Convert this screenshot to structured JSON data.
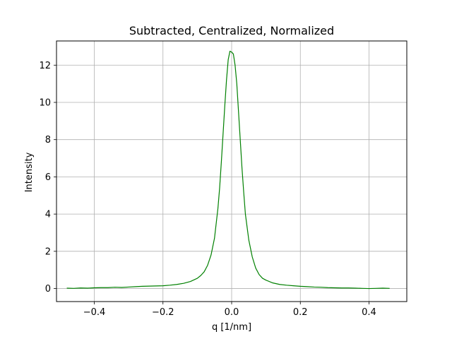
{
  "chart_data": {
    "type": "line",
    "title": "Subtracted, Centralized, Normalized",
    "xlabel": "q [1/nm]",
    "ylabel": "Intensity",
    "xlim": [
      -0.51,
      0.51
    ],
    "ylim": [
      -0.7,
      13.3
    ],
    "grid": true,
    "x_ticks": [
      -0.4,
      -0.2,
      0.0,
      0.2,
      0.4
    ],
    "x_tick_labels": [
      "−0.4",
      "−0.2",
      "0.0",
      "0.2",
      "0.4"
    ],
    "y_ticks": [
      0,
      2,
      4,
      6,
      8,
      10,
      12
    ],
    "y_tick_labels": [
      "0",
      "2",
      "4",
      "6",
      "8",
      "10",
      "12"
    ],
    "series": [
      {
        "color": "#008000",
        "x": [
          -0.48,
          -0.46,
          -0.44,
          -0.42,
          -0.4,
          -0.38,
          -0.36,
          -0.34,
          -0.32,
          -0.3,
          -0.28,
          -0.26,
          -0.24,
          -0.22,
          -0.2,
          -0.18,
          -0.16,
          -0.14,
          -0.12,
          -0.1,
          -0.09,
          -0.08,
          -0.07,
          -0.06,
          -0.05,
          -0.04,
          -0.035,
          -0.03,
          -0.025,
          -0.02,
          -0.015,
          -0.01,
          -0.005,
          0.0,
          0.005,
          0.01,
          0.015,
          0.02,
          0.025,
          0.03,
          0.035,
          0.04,
          0.05,
          0.06,
          0.07,
          0.08,
          0.09,
          0.1,
          0.12,
          0.14,
          0.16,
          0.18,
          0.2,
          0.22,
          0.24,
          0.26,
          0.28,
          0.3,
          0.32,
          0.34,
          0.36,
          0.38,
          0.4,
          0.42,
          0.44,
          0.46
        ],
        "y": [
          0.02,
          0.01,
          0.03,
          0.02,
          0.04,
          0.05,
          0.05,
          0.07,
          0.06,
          0.08,
          0.1,
          0.12,
          0.13,
          0.14,
          0.15,
          0.18,
          0.22,
          0.28,
          0.38,
          0.55,
          0.7,
          0.9,
          1.25,
          1.8,
          2.7,
          4.3,
          5.4,
          6.8,
          8.3,
          9.8,
          11.2,
          12.3,
          12.75,
          12.7,
          12.6,
          12.0,
          11.0,
          9.5,
          8.0,
          6.5,
          5.2,
          4.0,
          2.6,
          1.7,
          1.1,
          0.75,
          0.55,
          0.45,
          0.3,
          0.22,
          0.18,
          0.15,
          0.12,
          0.1,
          0.08,
          0.07,
          0.05,
          0.04,
          0.03,
          0.03,
          0.02,
          0.01,
          0.0,
          0.01,
          0.02,
          0.01
        ]
      }
    ]
  }
}
